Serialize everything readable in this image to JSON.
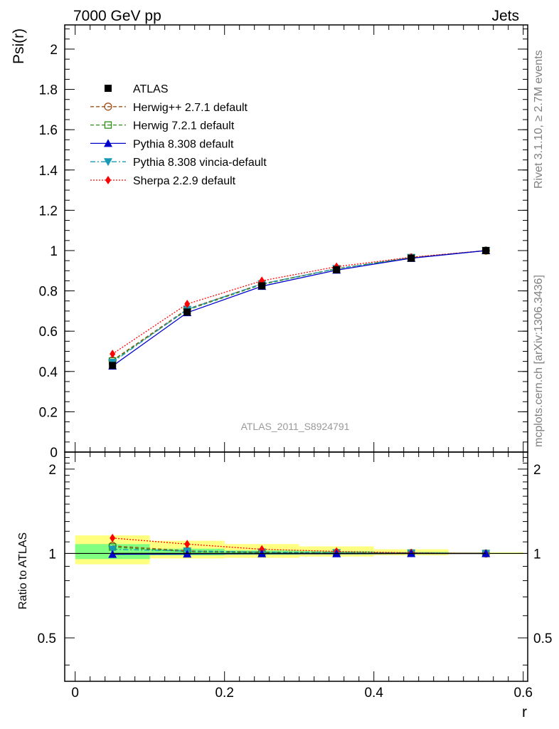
{
  "header": {
    "left": "7000 GeV pp",
    "right": "Jets"
  },
  "side": {
    "rivet": "Rivet 3.1.10, ≥ 2.7M events",
    "mcplots": "mcplots.cern.ch [arXiv:1306.3436]"
  },
  "chart_data": [
    {
      "type": "line",
      "ylabel": "Psi(r)",
      "xlim": [
        -0.014,
        0.606
      ],
      "ylim": [
        0,
        2.12
      ],
      "yticks": [
        0,
        0.2,
        0.4,
        0.6,
        0.8,
        1,
        1.2,
        1.4,
        1.6,
        1.8,
        2
      ],
      "ytick_labels": [
        "0",
        "0.2",
        "0.4",
        "0.6",
        "0.8",
        "1",
        "1.2",
        "1.4",
        "1.6",
        "1.8",
        "2"
      ],
      "watermark": "ATLAS_2011_S8924791",
      "x": [
        0.05,
        0.15,
        0.25,
        0.35,
        0.45,
        0.55
      ],
      "series": [
        {
          "name": "ATLAS",
          "color": "#000000",
          "marker": "square-filled",
          "line": "none",
          "values": [
            0.43,
            0.695,
            0.825,
            0.905,
            0.962,
            1.0
          ]
        },
        {
          "name": "Herwig++ 2.7.1 default",
          "color": "#a0521d",
          "marker": "circle-open",
          "line": "dashed",
          "values": [
            0.455,
            0.71,
            0.835,
            0.91,
            0.965,
            1.0
          ]
        },
        {
          "name": "Herwig 7.2.1 default",
          "color": "#2e8b17",
          "marker": "square-open",
          "line": "dashed",
          "values": [
            0.452,
            0.705,
            0.832,
            0.91,
            0.965,
            1.0
          ]
        },
        {
          "name": "Pythia 8.308 default",
          "color": "#0000cd",
          "marker": "triangle-up",
          "line": "solid",
          "values": [
            0.427,
            0.692,
            0.823,
            0.903,
            0.962,
            1.0
          ]
        },
        {
          "name": "Pythia 8.308 vincia-default",
          "color": "#1899b5",
          "marker": "triangle-down",
          "line": "dashdot",
          "values": [
            0.445,
            0.708,
            0.835,
            0.91,
            0.965,
            1.0
          ]
        },
        {
          "name": "Sherpa 2.2.9 default",
          "color": "#ff0000",
          "marker": "diamond",
          "line": "dotted",
          "values": [
            0.487,
            0.735,
            0.85,
            0.92,
            0.967,
            1.0
          ]
        }
      ]
    },
    {
      "type": "line",
      "ylabel": "Ratio to ATLAS",
      "xlabel": "r",
      "xlim": [
        -0.014,
        0.606
      ],
      "ylim": [
        0.35,
        2.3
      ],
      "yticks": [
        0.5,
        1,
        2
      ],
      "ytick_labels": [
        "0.5",
        "1",
        "2"
      ],
      "xticks": [
        0,
        0.2,
        0.4,
        0.6
      ],
      "xtick_labels": [
        "0",
        "0.2",
        "0.4",
        "0.6"
      ],
      "x": [
        0.05,
        0.15,
        0.25,
        0.35,
        0.45,
        0.55
      ],
      "bands": {
        "bin_edges": [
          0.0,
          0.1,
          0.2,
          0.3,
          0.4,
          0.5,
          0.6
        ],
        "yellow": {
          "color": "#ffff80",
          "lo": [
            0.915,
            0.96,
            0.965,
            0.975,
            0.985,
            0.995
          ],
          "hi": [
            1.16,
            1.11,
            1.08,
            1.06,
            1.035,
            1.01
          ]
        },
        "green": {
          "color": "#80ff80",
          "lo": [
            0.955,
            0.985,
            0.99,
            0.993,
            0.996,
            0.999
          ],
          "hi": [
            1.08,
            1.04,
            1.025,
            1.02,
            1.012,
            1.004
          ]
        }
      },
      "series": [
        {
          "name": "ATLAS",
          "color": "#000000",
          "marker": "none",
          "line": "solid",
          "values": [
            1.0,
            1.0,
            1.0,
            1.0,
            1.0,
            1.0
          ]
        },
        {
          "name": "Herwig++ 2.7.1 default",
          "color": "#a0521d",
          "marker": "circle-open",
          "line": "dashed",
          "values": [
            1.065,
            1.022,
            1.012,
            1.006,
            1.003,
            1.0
          ]
        },
        {
          "name": "Herwig 7.2.1 default",
          "color": "#2e8b17",
          "marker": "square-open",
          "line": "dashed",
          "values": [
            1.055,
            1.015,
            1.008,
            1.005,
            1.003,
            1.0
          ]
        },
        {
          "name": "Pythia 8.308 default",
          "color": "#0000cd",
          "marker": "triangle-up",
          "line": "solid",
          "values": [
            0.993,
            0.996,
            0.998,
            0.998,
            1.0,
            1.0
          ]
        },
        {
          "name": "Pythia 8.308 vincia-default",
          "color": "#1899b5",
          "marker": "triangle-down",
          "line": "dashdot",
          "values": [
            1.035,
            1.02,
            1.012,
            1.006,
            1.003,
            1.0
          ]
        },
        {
          "name": "Sherpa 2.2.9 default",
          "color": "#ff0000",
          "marker": "diamond",
          "line": "dotted",
          "values": [
            1.135,
            1.08,
            1.035,
            1.017,
            1.005,
            1.0
          ]
        }
      ]
    }
  ]
}
